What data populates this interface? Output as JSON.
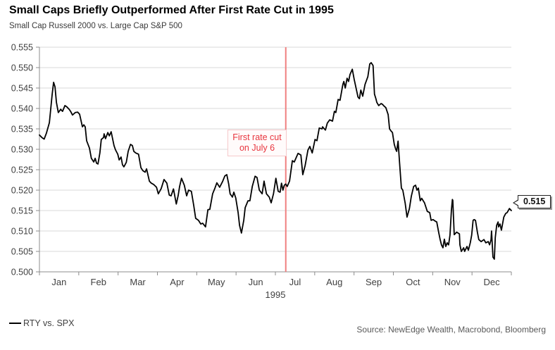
{
  "header": {
    "title": "Small Caps Briefly Outperformed After First Rate Cut in 1995",
    "subtitle": "Small Cap Russell 2000 vs. Large Cap S&P 500"
  },
  "legend": {
    "series_label": "RTY vs. SPX",
    "swatch_color": "#000000"
  },
  "footer": {
    "source": "Source: NewEdge Wealth, Macrobond, Bloomberg"
  },
  "chart_data": {
    "type": "line",
    "title": "Small Caps Briefly Outperformed After First Rate Cut in 1995",
    "subtitle": "Small Cap Russell 2000 vs. Large Cap S&P 500",
    "grid": "horizontal",
    "x_axis": {
      "year_label": "1995",
      "month_labels": [
        "Jan",
        "Feb",
        "Mar",
        "Apr",
        "May",
        "Jun",
        "Jul",
        "Aug",
        "Sep",
        "Oct",
        "Nov",
        "Dec"
      ],
      "note": "x values below are fractions of year 1995 (0 = Jan 1, 1 = Dec 31)"
    },
    "y_axis": {
      "ylim": [
        0.5,
        0.555
      ],
      "tick_labels": [
        "0.500",
        "0.505",
        "0.510",
        "0.515",
        "0.520",
        "0.525",
        "0.530",
        "0.535",
        "0.540",
        "0.545",
        "0.550",
        "0.555"
      ]
    },
    "event_line": {
      "x_fraction": 0.522,
      "color": "#f08080",
      "label": "First rate cut on July 6"
    },
    "annotation": {
      "text": "First rate cut on July 6",
      "text_color": "#e8353e"
    },
    "end_label": {
      "value": "0.515"
    },
    "series": [
      {
        "name": "RTY vs. SPX",
        "color": "#000000",
        "points": [
          [
            0.0,
            0.5335
          ],
          [
            0.006,
            0.5328
          ],
          [
            0.01,
            0.5325
          ],
          [
            0.015,
            0.534
          ],
          [
            0.021,
            0.5365
          ],
          [
            0.027,
            0.5435
          ],
          [
            0.03,
            0.5464
          ],
          [
            0.033,
            0.5453
          ],
          [
            0.036,
            0.5415
          ],
          [
            0.04,
            0.539
          ],
          [
            0.045,
            0.5398
          ],
          [
            0.049,
            0.5393
          ],
          [
            0.054,
            0.5407
          ],
          [
            0.058,
            0.5404
          ],
          [
            0.063,
            0.5398
          ],
          [
            0.066,
            0.5393
          ],
          [
            0.07,
            0.5384
          ],
          [
            0.076,
            0.539
          ],
          [
            0.081,
            0.5391
          ],
          [
            0.085,
            0.5386
          ],
          [
            0.091,
            0.5355
          ],
          [
            0.094,
            0.536
          ],
          [
            0.097,
            0.5355
          ],
          [
            0.1,
            0.5321
          ],
          [
            0.106,
            0.5303
          ],
          [
            0.11,
            0.5278
          ],
          [
            0.115,
            0.5269
          ],
          [
            0.118,
            0.5278
          ],
          [
            0.121,
            0.5266
          ],
          [
            0.124,
            0.5264
          ],
          [
            0.128,
            0.5291
          ],
          [
            0.131,
            0.5324
          ],
          [
            0.136,
            0.5329
          ],
          [
            0.137,
            0.5338
          ],
          [
            0.14,
            0.5326
          ],
          [
            0.145,
            0.5341
          ],
          [
            0.148,
            0.5333
          ],
          [
            0.152,
            0.5343
          ],
          [
            0.158,
            0.5309
          ],
          [
            0.161,
            0.5299
          ],
          [
            0.166,
            0.5288
          ],
          [
            0.169,
            0.5274
          ],
          [
            0.173,
            0.5281
          ],
          [
            0.176,
            0.5262
          ],
          [
            0.179,
            0.5257
          ],
          [
            0.184,
            0.5268
          ],
          [
            0.188,
            0.5295
          ],
          [
            0.193,
            0.5312
          ],
          [
            0.197,
            0.5309
          ],
          [
            0.2,
            0.5295
          ],
          [
            0.204,
            0.5291
          ],
          [
            0.21,
            0.5288
          ],
          [
            0.215,
            0.5255
          ],
          [
            0.219,
            0.5248
          ],
          [
            0.224,
            0.5244
          ],
          [
            0.227,
            0.5252
          ],
          [
            0.233,
            0.5222
          ],
          [
            0.237,
            0.5217
          ],
          [
            0.242,
            0.5214
          ],
          [
            0.248,
            0.5207
          ],
          [
            0.252,
            0.5191
          ],
          [
            0.258,
            0.5204
          ],
          [
            0.264,
            0.5226
          ],
          [
            0.27,
            0.5217
          ],
          [
            0.275,
            0.5188
          ],
          [
            0.279,
            0.5186
          ],
          [
            0.284,
            0.5203
          ],
          [
            0.29,
            0.5166
          ],
          [
            0.294,
            0.5187
          ],
          [
            0.297,
            0.5209
          ],
          [
            0.301,
            0.5229
          ],
          [
            0.307,
            0.5212
          ],
          [
            0.312,
            0.5186
          ],
          [
            0.316,
            0.52
          ],
          [
            0.322,
            0.5197
          ],
          [
            0.327,
            0.5162
          ],
          [
            0.331,
            0.5131
          ],
          [
            0.337,
            0.5126
          ],
          [
            0.342,
            0.5117
          ],
          [
            0.346,
            0.5119
          ],
          [
            0.352,
            0.511
          ],
          [
            0.357,
            0.5152
          ],
          [
            0.361,
            0.5153
          ],
          [
            0.367,
            0.5191
          ],
          [
            0.372,
            0.5205
          ],
          [
            0.376,
            0.5218
          ],
          [
            0.382,
            0.5207
          ],
          [
            0.388,
            0.5221
          ],
          [
            0.393,
            0.5235
          ],
          [
            0.397,
            0.5238
          ],
          [
            0.401,
            0.5215
          ],
          [
            0.404,
            0.5191
          ],
          [
            0.409,
            0.5183
          ],
          [
            0.412,
            0.5195
          ],
          [
            0.416,
            0.5181
          ],
          [
            0.421,
            0.5145
          ],
          [
            0.424,
            0.5114
          ],
          [
            0.428,
            0.5095
          ],
          [
            0.433,
            0.5126
          ],
          [
            0.436,
            0.5157
          ],
          [
            0.442,
            0.5174
          ],
          [
            0.446,
            0.5174
          ],
          [
            0.451,
            0.5209
          ],
          [
            0.457,
            0.5234
          ],
          [
            0.461,
            0.5231
          ],
          [
            0.466,
            0.52
          ],
          [
            0.472,
            0.5191
          ],
          [
            0.476,
            0.5222
          ],
          [
            0.481,
            0.5191
          ],
          [
            0.487,
            0.5183
          ],
          [
            0.491,
            0.5169
          ],
          [
            0.496,
            0.5191
          ],
          [
            0.501,
            0.5229
          ],
          [
            0.506,
            0.5197
          ],
          [
            0.51,
            0.5195
          ],
          [
            0.513,
            0.5217
          ],
          [
            0.516,
            0.52
          ],
          [
            0.519,
            0.5212
          ],
          [
            0.522,
            0.5215
          ],
          [
            0.525,
            0.5209
          ],
          [
            0.53,
            0.5222
          ],
          [
            0.536,
            0.5272
          ],
          [
            0.54,
            0.5269
          ],
          [
            0.548,
            0.529
          ],
          [
            0.554,
            0.5286
          ],
          [
            0.558,
            0.5238
          ],
          [
            0.563,
            0.526
          ],
          [
            0.569,
            0.5298
          ],
          [
            0.573,
            0.5307
          ],
          [
            0.578,
            0.5291
          ],
          [
            0.584,
            0.5324
          ],
          [
            0.588,
            0.5321
          ],
          [
            0.593,
            0.5352
          ],
          [
            0.599,
            0.535
          ],
          [
            0.6,
            0.5355
          ],
          [
            0.606,
            0.5347
          ],
          [
            0.61,
            0.5364
          ],
          [
            0.615,
            0.5372
          ],
          [
            0.621,
            0.5369
          ],
          [
            0.625,
            0.5393
          ],
          [
            0.628,
            0.539
          ],
          [
            0.633,
            0.5422
          ],
          [
            0.637,
            0.542
          ],
          [
            0.643,
            0.5459
          ],
          [
            0.645,
            0.5466
          ],
          [
            0.648,
            0.545
          ],
          [
            0.652,
            0.5474
          ],
          [
            0.655,
            0.5466
          ],
          [
            0.658,
            0.5483
          ],
          [
            0.663,
            0.5496
          ],
          [
            0.667,
            0.5471
          ],
          [
            0.67,
            0.5455
          ],
          [
            0.675,
            0.5428
          ],
          [
            0.678,
            0.5424
          ],
          [
            0.681,
            0.5445
          ],
          [
            0.685,
            0.543
          ],
          [
            0.69,
            0.5459
          ],
          [
            0.696,
            0.5478
          ],
          [
            0.7,
            0.5509
          ],
          [
            0.703,
            0.5512
          ],
          [
            0.707,
            0.5505
          ],
          [
            0.71,
            0.5435
          ],
          [
            0.713,
            0.5424
          ],
          [
            0.715,
            0.5415
          ],
          [
            0.719,
            0.5407
          ],
          [
            0.724,
            0.5412
          ],
          [
            0.727,
            0.541
          ],
          [
            0.731,
            0.5405
          ],
          [
            0.734,
            0.5402
          ],
          [
            0.739,
            0.5385
          ],
          [
            0.742,
            0.535
          ],
          [
            0.745,
            0.5345
          ],
          [
            0.748,
            0.5341
          ],
          [
            0.752,
            0.5312
          ],
          [
            0.755,
            0.53
          ],
          [
            0.757,
            0.5295
          ],
          [
            0.76,
            0.532
          ],
          [
            0.763,
            0.527
          ],
          [
            0.767,
            0.5205
          ],
          [
            0.77,
            0.52
          ],
          [
            0.775,
            0.5168
          ],
          [
            0.779,
            0.5134
          ],
          [
            0.784,
            0.5155
          ],
          [
            0.788,
            0.5185
          ],
          [
            0.793,
            0.5209
          ],
          [
            0.797,
            0.5212
          ],
          [
            0.8,
            0.52
          ],
          [
            0.803,
            0.5205
          ],
          [
            0.807,
            0.5174
          ],
          [
            0.81,
            0.518
          ],
          [
            0.816,
            0.5169
          ],
          [
            0.822,
            0.5148
          ],
          [
            0.827,
            0.5145
          ],
          [
            0.83,
            0.5126
          ],
          [
            0.834,
            0.5128
          ],
          [
            0.839,
            0.5124
          ],
          [
            0.842,
            0.5122
          ],
          [
            0.846,
            0.5097
          ],
          [
            0.849,
            0.508
          ],
          [
            0.852,
            0.5066
          ],
          [
            0.855,
            0.5059
          ],
          [
            0.858,
            0.508
          ],
          [
            0.861,
            0.5062
          ],
          [
            0.864,
            0.5071
          ],
          [
            0.867,
            0.5066
          ],
          [
            0.87,
            0.509
          ],
          [
            0.873,
            0.515
          ],
          [
            0.875,
            0.5177
          ],
          [
            0.876,
            0.5175
          ],
          [
            0.879,
            0.5091
          ],
          [
            0.884,
            0.5097
          ],
          [
            0.887,
            0.5095
          ],
          [
            0.89,
            0.5093
          ],
          [
            0.891,
            0.5066
          ],
          [
            0.894,
            0.505
          ],
          [
            0.899,
            0.5059
          ],
          [
            0.901,
            0.505
          ],
          [
            0.906,
            0.5062
          ],
          [
            0.909,
            0.5053
          ],
          [
            0.913,
            0.5071
          ],
          [
            0.916,
            0.509
          ],
          [
            0.919,
            0.5126
          ],
          [
            0.921,
            0.5128
          ],
          [
            0.924,
            0.5126
          ],
          [
            0.928,
            0.5097
          ],
          [
            0.931,
            0.5079
          ],
          [
            0.936,
            0.5074
          ],
          [
            0.942,
            0.5079
          ],
          [
            0.946,
            0.5071
          ],
          [
            0.951,
            0.5074
          ],
          [
            0.954,
            0.5066
          ],
          [
            0.957,
            0.5079
          ],
          [
            0.958,
            0.51
          ],
          [
            0.961,
            0.5036
          ],
          [
            0.964,
            0.5031
          ],
          [
            0.966,
            0.5084
          ],
          [
            0.969,
            0.5114
          ],
          [
            0.972,
            0.5122
          ],
          [
            0.973,
            0.511
          ],
          [
            0.976,
            0.5117
          ],
          [
            0.979,
            0.5102
          ],
          [
            0.984,
            0.5134
          ],
          [
            0.988,
            0.5143
          ],
          [
            0.991,
            0.5145
          ],
          [
            0.996,
            0.5155
          ],
          [
            1.0,
            0.515
          ]
        ]
      }
    ]
  }
}
